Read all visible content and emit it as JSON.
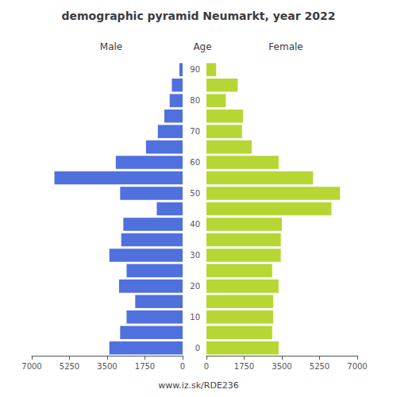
{
  "chart_data": {
    "type": "bar",
    "orientation": "horizontal",
    "title": "demographic pyramid Neumarkt, year 2022",
    "ylabel": "Age",
    "annotations": [
      "www.iz.sk/RDE236"
    ],
    "categories": [
      "0",
      null,
      "10",
      null,
      "20",
      null,
      "30",
      null,
      "40",
      null,
      "50",
      null,
      "60",
      null,
      "70",
      null,
      "80",
      null,
      "90"
    ],
    "series": [
      {
        "name": "Male",
        "values": [
          3400,
          2900,
          2600,
          2200,
          2950,
          2600,
          3400,
          2850,
          2750,
          1200,
          2900,
          5950,
          3100,
          1700,
          1150,
          850,
          600,
          500,
          150
        ]
      },
      {
        "name": "Female",
        "values": [
          3350,
          3050,
          3100,
          3100,
          3350,
          3050,
          3450,
          3450,
          3500,
          5800,
          6200,
          4950,
          3350,
          2100,
          1650,
          1700,
          900,
          1450,
          450
        ]
      }
    ],
    "xlim": [
      0,
      7000
    ],
    "xticks": [
      0,
      1750,
      3500,
      5250,
      7000
    ],
    "grid": false
  }
}
